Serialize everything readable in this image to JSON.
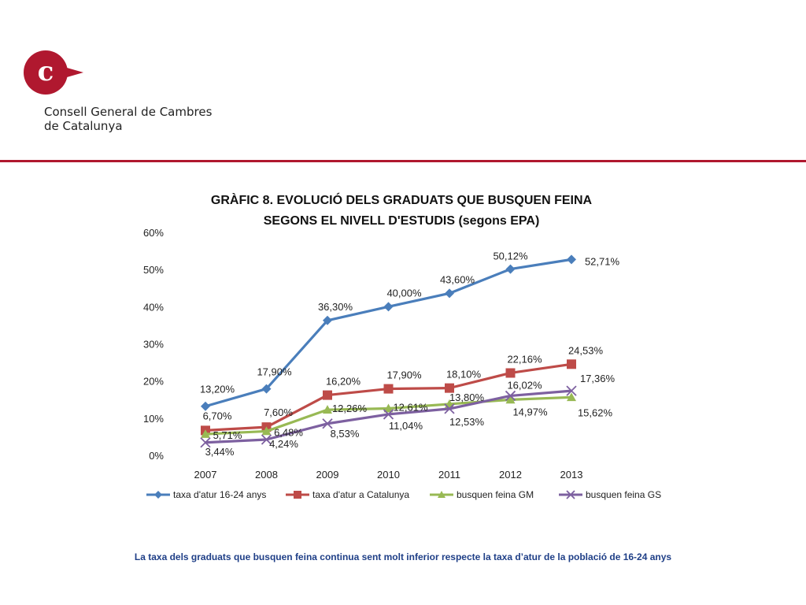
{
  "brand": {
    "name_line1": "Consell General de Cambres",
    "name_line2": "de Catalunya",
    "logo_glyph": "c",
    "accent_color": "#b0182f"
  },
  "chart_data": {
    "type": "line",
    "title_line1": "GRÀFIC 8.  EVOLUCIÓ DELS GRADUATS QUE BUSQUEN FEINA",
    "title_line2": "SEGONS EL NIVELL D'ESTUDIS (segons EPA)",
    "xlabel": "",
    "ylabel": "",
    "categories": [
      "2007",
      "2008",
      "2009",
      "2010",
      "2011",
      "2012",
      "2013"
    ],
    "ylim": [
      0,
      60
    ],
    "yticks": [
      "0%",
      "10%",
      "20%",
      "30%",
      "40%",
      "50%",
      "60%"
    ],
    "grid": false,
    "legend_position": "bottom",
    "series": [
      {
        "name": "taxa d'atur 16-24 anys",
        "color": "#4a7ebb",
        "marker": "diamond",
        "values": [
          13.2,
          17.9,
          36.3,
          40.0,
          43.6,
          50.12,
          52.71
        ],
        "labels": [
          "13,20%",
          "17,90%",
          "36,30%",
          "40,00%",
          "43,60%",
          "50,12%",
          "52,71%"
        ]
      },
      {
        "name": "taxa d'atur a Catalunya",
        "color": "#be4b48",
        "marker": "square",
        "values": [
          6.7,
          7.6,
          16.2,
          17.9,
          18.1,
          22.16,
          24.53
        ],
        "labels": [
          "6,70%",
          "7,60%",
          "16,20%",
          "17,90%",
          "18,10%",
          "22,16%",
          "24,53%"
        ]
      },
      {
        "name": "busquen feina GM",
        "color": "#98b954",
        "marker": "triangle",
        "values": [
          5.71,
          6.48,
          12.26,
          12.61,
          13.8,
          14.97,
          15.62
        ],
        "labels": [
          "5,71%",
          "6,48%",
          "12,26%",
          "12,61%",
          "13,80%",
          "14,97%",
          "15,62%"
        ]
      },
      {
        "name": "busquen feina GS",
        "color": "#7d60a0",
        "marker": "x",
        "values": [
          3.44,
          4.24,
          8.53,
          11.04,
          12.53,
          16.02,
          17.36
        ],
        "labels": [
          "3,44%",
          "4,24%",
          "8,53%",
          "11,04%",
          "12,53%",
          "16,02%",
          "17,36%"
        ]
      }
    ]
  },
  "footnote": {
    "text": "La taxa dels graduats que busquen feina continua sent molt inferior respecte la taxa d’atur de la població de 16-24 anys",
    "color": "#1f3f87"
  }
}
